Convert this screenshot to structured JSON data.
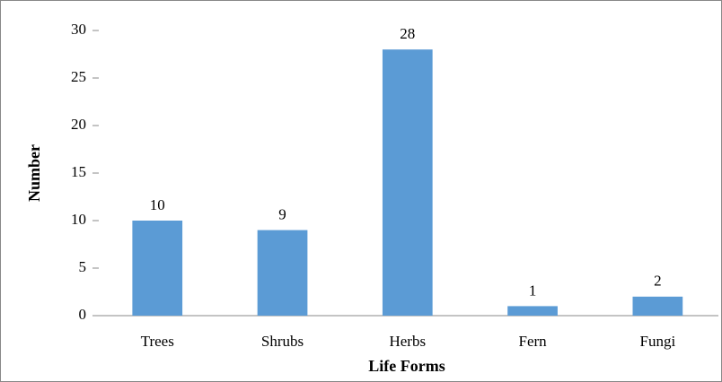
{
  "chart_data": {
    "type": "bar",
    "categories": [
      "Trees",
      "Shrubs",
      "Herbs",
      "Fern",
      "Fungi"
    ],
    "values": [
      10,
      9,
      28,
      1,
      2
    ],
    "color": "#5b9bd5",
    "ylim": [
      0,
      30
    ],
    "yticks": [
      0,
      5,
      10,
      15,
      20,
      25,
      30
    ],
    "ylabel": "Number",
    "xlabel": "Life Forms",
    "data_labels": true
  }
}
